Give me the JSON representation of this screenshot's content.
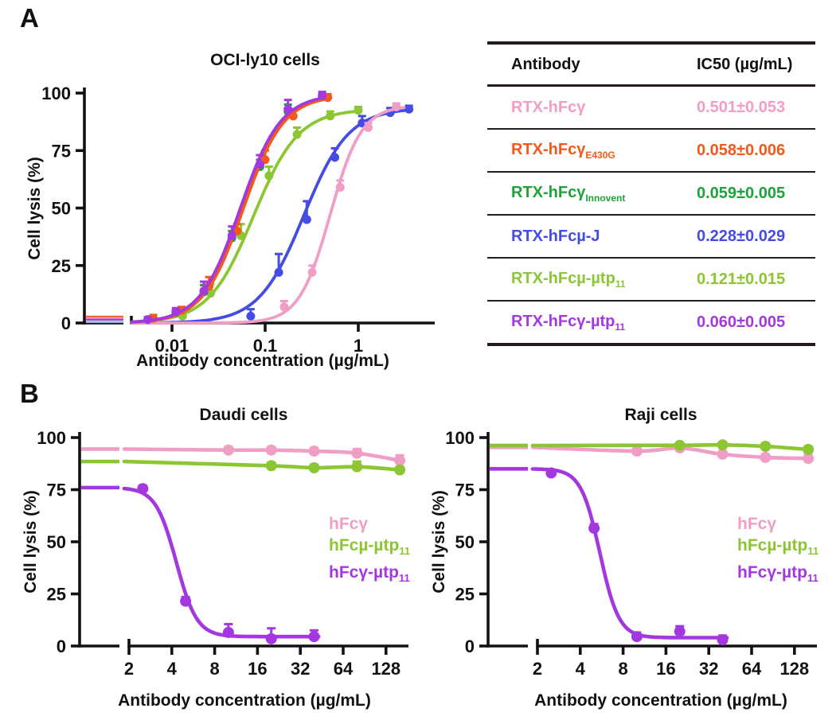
{
  "figure": {
    "panel_a_label": "A",
    "panel_b_label": "B"
  },
  "table": {
    "headers": [
      "Antibody",
      "IC50 (µg/mL)"
    ],
    "rows": [
      {
        "name": {
          "base": "RTX-hFcγ",
          "sub": ""
        },
        "value": "0.501±0.053",
        "color": "#F09EC6"
      },
      {
        "name": {
          "base": "RTX-hFcγ",
          "sub": "E430G"
        },
        "value": "0.058±0.006",
        "color": "#F4581A"
      },
      {
        "name": {
          "base": "RTX-hFcγ",
          "sub": "Innovent"
        },
        "value": "0.059±0.005",
        "color": "#1EA23C"
      },
      {
        "name": {
          "base": "RTX-hFcµ-J",
          "sub": ""
        },
        "value": "0.228±0.029",
        "color": "#444CE4"
      },
      {
        "name": {
          "base": "RTX-hFcµ-µtp",
          "sub": "11"
        },
        "value": "0.121±0.015",
        "color": "#8CC632"
      },
      {
        "name": {
          "base": "RTX-hFcγ-µtp",
          "sub": "11"
        },
        "value": "0.060±0.005",
        "color": "#A438E0"
      }
    ]
  },
  "chart_data": [
    {
      "id": "A",
      "type": "line",
      "title": "OCI-ly10 cells",
      "xlabel": "Antibody concentration (µg/mL)",
      "ylabel": "Cell lysis (%)",
      "xscale": "log10",
      "axis_break": true,
      "ylim": [
        0,
        100
      ],
      "yticks": [
        0,
        25,
        50,
        75,
        100
      ],
      "xticks": [
        {
          "v": 0.01,
          "label": "0.01"
        },
        {
          "v": 0.1,
          "label": "0.1"
        },
        {
          "v": 1,
          "label": "1"
        }
      ],
      "control_lines": [
        {
          "color": "#F4581A",
          "y": 2.6
        },
        {
          "color": "#F09EC6",
          "y": 2.0
        },
        {
          "color": "#BB2BC4",
          "y": 1.3
        },
        {
          "color": "#9CC7EA",
          "y": 0.6
        }
      ],
      "series": [
        {
          "name": "RTX-hFcµ-J",
          "color": "#444CE4",
          "curve": {
            "kind": "log-up",
            "ec50": 0.26,
            "hill": 1.8,
            "top": 93.5,
            "range": [
              0.0037,
              3.6
            ]
          },
          "points": [
            [
              0.07,
              3,
              3
            ],
            [
              0.14,
              22,
              8
            ],
            [
              0.28,
              45,
              8
            ],
            [
              0.56,
              72,
              4
            ],
            [
              1.1,
              87,
              3
            ],
            [
              2.2,
              91.5,
              2
            ],
            [
              3.5,
              93,
              1.5
            ]
          ]
        },
        {
          "name": "RTX-hFcγ",
          "color": "#F09EC6",
          "curve": {
            "kind": "log-up",
            "ec50": 0.5,
            "hill": 2.6,
            "top": 94.5,
            "range": [
              0.0037,
              3.1
            ]
          },
          "points": [
            [
              0.16,
              7,
              2.5
            ],
            [
              0.32,
              22,
              3
            ],
            [
              0.64,
              59,
              3
            ],
            [
              1.28,
              85,
              2
            ],
            [
              2.56,
              94,
              1.5
            ]
          ]
        },
        {
          "name": "RTX-hFcµ-µtp11",
          "color": "#8CC632",
          "curve": {
            "kind": "log-up",
            "ec50": 0.075,
            "hill": 1.8,
            "top": 93,
            "range": [
              0.0037,
              1.05
            ]
          },
          "points": [
            [
              0.013,
              3,
              1.5
            ],
            [
              0.026,
              13,
              4
            ],
            [
              0.055,
              38,
              5
            ],
            [
              0.11,
              64,
              4
            ],
            [
              0.22,
              82,
              3
            ],
            [
              0.5,
              90,
              2
            ],
            [
              1.0,
              92.5,
              1.5
            ]
          ]
        },
        {
          "name": "RTX-hFcγInnovent",
          "color": "#1EA23C",
          "curve": {
            "kind": "log-up",
            "ec50": 0.055,
            "hill": 2.0,
            "top": 99,
            "range": [
              0.0037,
              0.42
            ]
          },
          "points": [
            [
              0.0055,
              1.5,
              1
            ],
            [
              0.011,
              4.5,
              1.5
            ],
            [
              0.022,
              13.5,
              3
            ],
            [
              0.044,
              37,
              3
            ],
            [
              0.088,
              68,
              3
            ],
            [
              0.176,
              92,
              3
            ],
            [
              0.41,
              98.5,
              1.5
            ]
          ]
        },
        {
          "name": "RTX-hFcγE430G",
          "color": "#F4581A",
          "curve": {
            "kind": "log-up",
            "ec50": 0.058,
            "hill": 2.0,
            "top": 99,
            "range": [
              0.0037,
              0.48
            ]
          },
          "points": [
            [
              0.0063,
              2,
              1.5
            ],
            [
              0.0127,
              5.5,
              1.5
            ],
            [
              0.025,
              16,
              4
            ],
            [
              0.05,
              40,
              3
            ],
            [
              0.1,
              71,
              4
            ],
            [
              0.2,
              90,
              3
            ],
            [
              0.47,
              98,
              1.5
            ]
          ]
        },
        {
          "name": "RTX-hFcγ-µtp11",
          "color": "#A438E0",
          "curve": {
            "kind": "log-up",
            "ec50": 0.054,
            "hill": 2.0,
            "top": 99.5,
            "range": [
              0.0037,
              0.42
            ]
          },
          "points": [
            [
              0.0055,
              1.5,
              1
            ],
            [
              0.011,
              5,
              1.5
            ],
            [
              0.022,
              14,
              4
            ],
            [
              0.044,
              38,
              4
            ],
            [
              0.088,
              69,
              4
            ],
            [
              0.176,
              93,
              4
            ],
            [
              0.41,
              99,
              1.5
            ]
          ]
        }
      ]
    },
    {
      "id": "D",
      "type": "line",
      "title": "Daudi cells",
      "xlabel": "Antibody concentration (µg/mL)",
      "ylabel": "Cell lysis (%)",
      "xscale": "log2",
      "axis_break": true,
      "ylim": [
        0,
        100
      ],
      "yticks": [
        0,
        25,
        50,
        75,
        100
      ],
      "xticks": [
        {
          "v": 2,
          "label": "2"
        },
        {
          "v": 4,
          "label": "4"
        },
        {
          "v": 8,
          "label": "8"
        },
        {
          "v": 16,
          "label": "16"
        },
        {
          "v": 32,
          "label": "32"
        },
        {
          "v": 64,
          "label": "64"
        },
        {
          "v": 128,
          "label": "128"
        }
      ],
      "legend": [
        {
          "label": {
            "base": "hFcγ",
            "sub": ""
          },
          "color": "#F09EC6"
        },
        {
          "label": {
            "base": "hFcµ-µtp",
            "sub": "11"
          },
          "color": "#8CC632"
        },
        {
          "label": {
            "base": "hFcγ-µtp",
            "sub": "11"
          },
          "color": "#A438E0"
        }
      ],
      "series": [
        {
          "name": "hFcγ",
          "color": "#F09EC6",
          "control": 94.5,
          "curve": {
            "kind": "spline"
          },
          "points": [
            [
              10,
              94,
              1.5
            ],
            [
              20,
              94,
              1.5
            ],
            [
              40,
              93.5,
              1.5
            ],
            [
              80,
              92.5,
              2
            ],
            [
              160,
              89,
              2.5
            ]
          ]
        },
        {
          "name": "hFcµ-µtp11",
          "color": "#8CC632",
          "control": 88.5,
          "curve": {
            "kind": "spline"
          },
          "points": [
            [
              20,
              86.5,
              1.5
            ],
            [
              40,
              85.5,
              1.5
            ],
            [
              80,
              86,
              2.5
            ],
            [
              160,
              84.5,
              1.5
            ]
          ]
        },
        {
          "name": "hFcγ-µtp11",
          "color": "#A438E0",
          "control": 76,
          "curve": {
            "kind": "log-dec",
            "ic50": 4.3,
            "hill": 6,
            "top": 76,
            "floor": 4.5,
            "range": [
              1.85,
              43
            ]
          },
          "points": [
            [
              2.5,
              75.5,
              1.5
            ],
            [
              5,
              21.5,
              2
            ],
            [
              10,
              6.5,
              4
            ],
            [
              20,
              3.5,
              5
            ],
            [
              40,
              4.5,
              3
            ]
          ]
        }
      ]
    },
    {
      "id": "R",
      "type": "line",
      "title": "Raji cells",
      "xlabel": "Antibody concentration (µg/mL)",
      "ylabel": "Cell lysis (%)",
      "xscale": "log2",
      "axis_break": true,
      "ylim": [
        0,
        100
      ],
      "yticks": [
        0,
        25,
        50,
        75,
        100
      ],
      "xticks": [
        {
          "v": 2,
          "label": "2"
        },
        {
          "v": 4,
          "label": "4"
        },
        {
          "v": 8,
          "label": "8"
        },
        {
          "v": 16,
          "label": "16"
        },
        {
          "v": 32,
          "label": "32"
        },
        {
          "v": 64,
          "label": "64"
        },
        {
          "v": 128,
          "label": "128"
        }
      ],
      "legend": [
        {
          "label": {
            "base": "hFcγ",
            "sub": ""
          },
          "color": "#F09EC6"
        },
        {
          "label": {
            "base": "hFcµ-µtp",
            "sub": "11"
          },
          "color": "#8CC632"
        },
        {
          "label": {
            "base": "hFcγ-µtp",
            "sub": "11"
          },
          "color": "#A438E0"
        }
      ],
      "series": [
        {
          "name": "hFcγ",
          "color": "#F09EC6",
          "control": 95.3,
          "curve": {
            "kind": "spline"
          },
          "points": [
            [
              10,
              93.5,
              1.5
            ],
            [
              20,
              95,
              1.5
            ],
            [
              40,
              92,
              1.5
            ],
            [
              80,
              90.5,
              1.5
            ],
            [
              160,
              90,
              2
            ]
          ]
        },
        {
          "name": "hFcµ-µtp11",
          "color": "#8CC632",
          "control": 96.2,
          "curve": {
            "kind": "spline"
          },
          "points": [
            [
              20,
              96.3,
              1
            ],
            [
              40,
              96.5,
              1
            ],
            [
              80,
              95.8,
              1.5
            ],
            [
              160,
              94.3,
              1.5
            ]
          ]
        },
        {
          "name": "hFcγ-µtp11",
          "color": "#A438E0",
          "control": 85,
          "curve": {
            "kind": "log-dec",
            "ic50": 5.5,
            "hill": 6.5,
            "top": 85,
            "floor": 4,
            "range": [
              1.85,
              43
            ]
          },
          "points": [
            [
              2.5,
              83,
              1.5
            ],
            [
              5,
              56.5,
              2
            ],
            [
              10,
              4.5,
              2
            ],
            [
              20,
              7,
              2.5
            ],
            [
              40,
              3,
              2
            ]
          ]
        }
      ]
    }
  ]
}
